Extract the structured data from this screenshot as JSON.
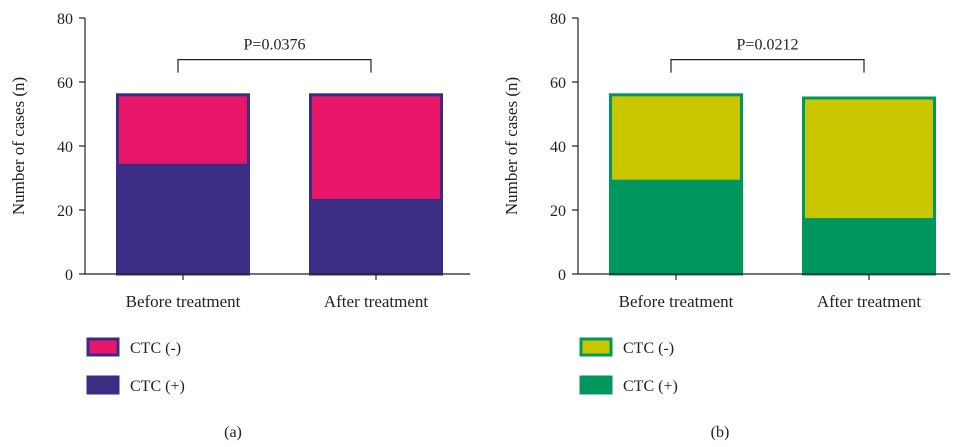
{
  "chart_data": [
    {
      "type": "bar",
      "stacked": true,
      "panel_label": "(a)",
      "ylabel": "Number of cases (n)",
      "ylim": [
        0,
        80
      ],
      "yticks": [
        0,
        20,
        40,
        60,
        80
      ],
      "categories": [
        "Before treatment",
        "After treatment"
      ],
      "series": [
        {
          "name": "CTC (+)",
          "values": [
            34,
            23
          ],
          "color": "#3b2c84"
        },
        {
          "name": "CTC (-)",
          "values": [
            22,
            33
          ],
          "color": "#e8176a"
        }
      ],
      "annotation": {
        "text": "P=0.0376",
        "bracket_y": 67
      },
      "legend": {
        "placement": "bottom",
        "order": [
          "CTC (-)",
          "CTC (+)"
        ]
      }
    },
    {
      "type": "bar",
      "stacked": true,
      "panel_label": "(b)",
      "ylabel": "Number of cases (n)",
      "ylim": [
        0,
        80
      ],
      "yticks": [
        0,
        20,
        40,
        60,
        80
      ],
      "categories": [
        "Before treatment",
        "After treatment"
      ],
      "series": [
        {
          "name": "CTC (+)",
          "values": [
            29,
            17
          ],
          "color": "#00975f"
        },
        {
          "name": "CTC (-)",
          "values": [
            27,
            38
          ],
          "color": "#c9c600"
        }
      ],
      "annotation": {
        "text": "P=0.0212",
        "bracket_y": 67
      },
      "legend": {
        "placement": "bottom",
        "order": [
          "CTC (-)",
          "CTC (+)"
        ]
      }
    }
  ]
}
